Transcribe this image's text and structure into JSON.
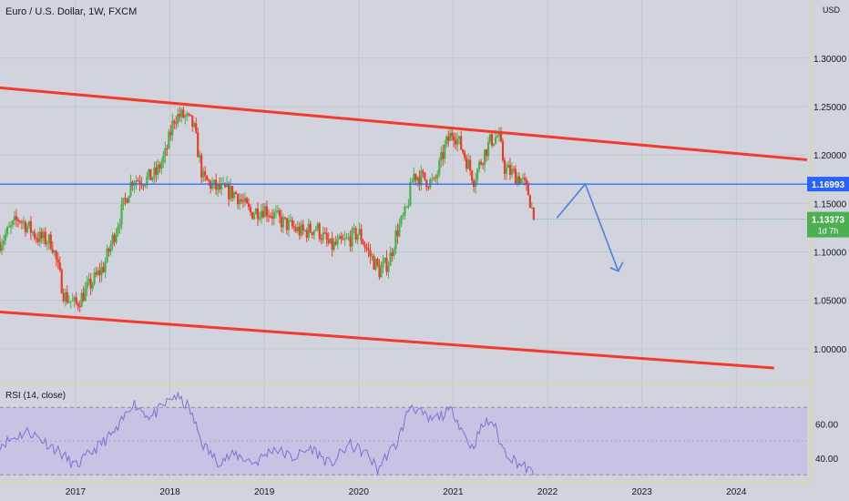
{
  "title": "Euro / U.S. Dollar, 1W, FXCM",
  "currency": "USD",
  "colors": {
    "background": "#d1d4dc",
    "bull": "#4caf50",
    "bear": "#ef3b2c",
    "trend": "#f23b2a",
    "level": "#2962ff",
    "arrow": "#4a7fe0",
    "rsi_line": "#7e6fd6",
    "rsi_band": "#c9c3e3",
    "grid": "#c2c5cf",
    "price_badge": "#4caf50",
    "level_badge": "#2962ff"
  },
  "chart_data": [
    {
      "type": "candlestick",
      "title": "Euro / U.S. Dollar, 1W, FXCM",
      "ylim": [
        0.965,
        1.36
      ],
      "yticks": [
        "1.30000",
        "1.25000",
        "1.20000",
        "1.15000",
        "1.10000",
        "1.05000",
        "1.00000"
      ],
      "xlim": [
        2016.2,
        2024.75
      ],
      "xticks": [
        "2017",
        "2018",
        "2019",
        "2020",
        "2021",
        "2022",
        "2023",
        "2024"
      ],
      "anchors": [
        [
          2016.2,
          1.11
        ],
        [
          2016.4,
          1.135
        ],
        [
          2016.6,
          1.115
        ],
        [
          2016.75,
          1.11
        ],
        [
          2016.88,
          1.055
        ],
        [
          2017.0,
          1.045
        ],
        [
          2017.15,
          1.065
        ],
        [
          2017.3,
          1.085
        ],
        [
          2017.45,
          1.13
        ],
        [
          2017.6,
          1.175
        ],
        [
          2017.75,
          1.175
        ],
        [
          2017.85,
          1.18
        ],
        [
          2017.95,
          1.2
        ],
        [
          2018.05,
          1.24
        ],
        [
          2018.15,
          1.24
        ],
        [
          2018.25,
          1.23
        ],
        [
          2018.35,
          1.175
        ],
        [
          2018.5,
          1.165
        ],
        [
          2018.7,
          1.16
        ],
        [
          2018.85,
          1.14
        ],
        [
          2019.0,
          1.145
        ],
        [
          2019.2,
          1.13
        ],
        [
          2019.4,
          1.12
        ],
        [
          2019.55,
          1.125
        ],
        [
          2019.7,
          1.105
        ],
        [
          2019.85,
          1.11
        ],
        [
          2020.0,
          1.12
        ],
        [
          2020.1,
          1.1
        ],
        [
          2020.22,
          1.08
        ],
        [
          2020.32,
          1.09
        ],
        [
          2020.4,
          1.12
        ],
        [
          2020.5,
          1.14
        ],
        [
          2020.58,
          1.18
        ],
        [
          2020.7,
          1.175
        ],
        [
          2020.8,
          1.17
        ],
        [
          2020.92,
          1.21
        ],
        [
          2021.0,
          1.225
        ],
        [
          2021.1,
          1.205
        ],
        [
          2021.22,
          1.175
        ],
        [
          2021.32,
          1.2
        ],
        [
          2021.4,
          1.215
        ],
        [
          2021.48,
          1.22
        ],
        [
          2021.55,
          1.185
        ],
        [
          2021.65,
          1.18
        ],
        [
          2021.72,
          1.175
        ],
        [
          2021.8,
          1.16
        ],
        [
          2021.86,
          1.133
        ]
      ],
      "annotations": {
        "upper_trendline": [
          [
            2015.9,
            1.272
          ],
          [
            2024.75,
            1.195
          ]
        ],
        "lower_trendline": [
          [
            2015.9,
            1.04
          ],
          [
            2024.4,
            0.98
          ]
        ],
        "horizontal_level": 1.16993,
        "level_label": "1.16993",
        "projection": [
          [
            2022.1,
            1.135
          ],
          [
            2022.4,
            1.17
          ],
          [
            2022.75,
            1.08
          ]
        ]
      },
      "last_price": "1.13373",
      "countdown": "1d 7h"
    },
    {
      "type": "line",
      "title": "RSI (14, close)",
      "ylim": [
        28,
        82
      ],
      "yticks": [
        "60.00",
        "40.00"
      ],
      "bands": [
        30,
        70
      ],
      "midline": 50,
      "anchors": [
        [
          2016.2,
          48
        ],
        [
          2016.5,
          56
        ],
        [
          2016.8,
          45
        ],
        [
          2017.0,
          35
        ],
        [
          2017.2,
          45
        ],
        [
          2017.45,
          57
        ],
        [
          2017.6,
          73
        ],
        [
          2017.8,
          64
        ],
        [
          2018.05,
          77
        ],
        [
          2018.2,
          70
        ],
        [
          2018.35,
          48
        ],
        [
          2018.5,
          38
        ],
        [
          2018.7,
          42
        ],
        [
          2018.9,
          37
        ],
        [
          2019.1,
          46
        ],
        [
          2019.3,
          40
        ],
        [
          2019.5,
          46
        ],
        [
          2019.7,
          36
        ],
        [
          2019.9,
          48
        ],
        [
          2020.1,
          42
        ],
        [
          2020.2,
          33
        ],
        [
          2020.3,
          42
        ],
        [
          2020.4,
          48
        ],
        [
          2020.55,
          72
        ],
        [
          2020.75,
          62
        ],
        [
          2020.9,
          66
        ],
        [
          2021.0,
          68
        ],
        [
          2021.1,
          56
        ],
        [
          2021.2,
          46
        ],
        [
          2021.32,
          60
        ],
        [
          2021.42,
          62
        ],
        [
          2021.52,
          46
        ],
        [
          2021.62,
          40
        ],
        [
          2021.72,
          36
        ],
        [
          2021.8,
          33
        ],
        [
          2021.86,
          29
        ]
      ]
    }
  ]
}
